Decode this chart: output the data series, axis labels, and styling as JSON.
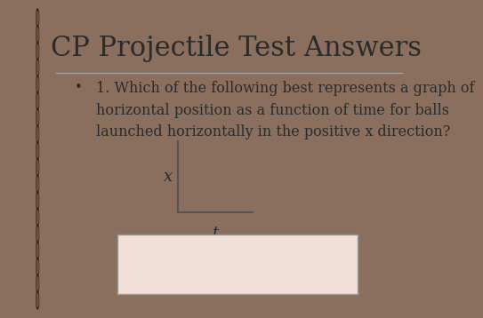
{
  "title": "CP Projectile Test Answers",
  "bullet_text": "1. Which of the following best represents a graph of\nhorizontal position as a function of time for balls\nlaunched horizontally in the positive x direction?",
  "background_outer": "#8B6F5E",
  "background_slide": "#E8E4D8",
  "title_color": "#2B2B2B",
  "text_color": "#2B2B2B",
  "axis_color": "#555555",
  "answer_box_fill": "#F2E0D8",
  "answer_box_edge": "#999999",
  "axis_x_label": "x",
  "axis_t_label": "t",
  "title_fontsize": 22,
  "bullet_fontsize": 11.5,
  "axis_label_fontsize": 13
}
